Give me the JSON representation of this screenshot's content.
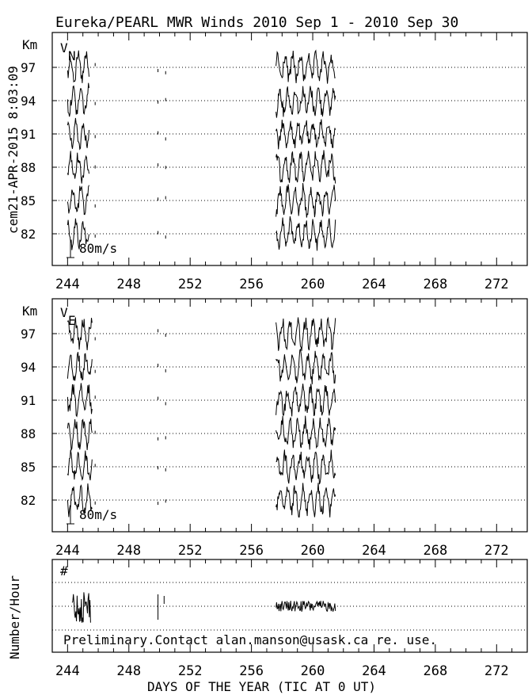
{
  "title": "Eureka/PEARL MWR Winds 2010 Sep  1 - 2010 Sep 30",
  "side_label": "cem21-APR-2015  8:03:09",
  "footer_note": "Preliminary.Contact alan.manson@usask.ca re. use.",
  "x_axis_label": "DAYS OF THE YEAR (TIC AT 0 UT)",
  "chart_data": [
    {
      "type": "line",
      "panel": "VN",
      "component_label": "V",
      "component_sub": "N",
      "y_unit_label": "Km",
      "altitudes_km": [
        82,
        85,
        88,
        91,
        94,
        97
      ],
      "scale_label": "80m/s",
      "x_ticks": [
        244,
        248,
        252,
        256,
        260,
        264,
        268,
        272
      ],
      "xlim": [
        243,
        274
      ],
      "data_segments": [
        [
          244.0,
          245.4
        ],
        [
          257.6,
          261.5
        ]
      ],
      "sparse_days": [
        245.8,
        249.9,
        250.4
      ],
      "amplitude_mps": 80
    },
    {
      "type": "line",
      "panel": "VE",
      "component_label": "V",
      "component_sub": "E",
      "y_unit_label": "Km",
      "altitudes_km": [
        82,
        85,
        88,
        91,
        94,
        97
      ],
      "scale_label": "80m/s",
      "x_ticks": [
        244,
        248,
        252,
        256,
        260,
        264,
        268,
        272
      ],
      "xlim": [
        243,
        274
      ],
      "data_segments": [
        [
          244.0,
          245.6
        ],
        [
          257.6,
          261.5
        ]
      ],
      "sparse_days": [
        245.8,
        249.9,
        250.4
      ],
      "amplitude_mps": 80
    },
    {
      "type": "line",
      "panel": "count",
      "marker_label": "#",
      "ylabel": "Number/Hour",
      "x_ticks": [
        244,
        248,
        252,
        256,
        260,
        264,
        268,
        272
      ],
      "xlim": [
        243,
        274
      ],
      "data_segments": [
        [
          244.3,
          245.5
        ],
        [
          257.6,
          261.5
        ]
      ],
      "sparse_days": [
        249.9,
        250.3
      ]
    }
  ]
}
